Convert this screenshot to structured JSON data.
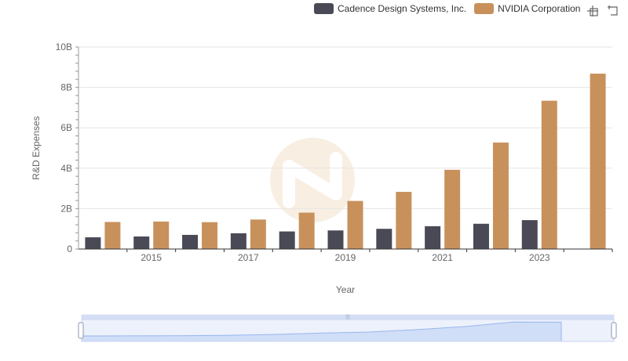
{
  "colors": {
    "cadence": "#4a4a56",
    "nvidia": "#c8915c",
    "grid": "#e6e6e6",
    "axis": "#666666",
    "zoom_fill": "#dbe6fb",
    "zoom_border": "#b8c7ea",
    "zoom_line": "#8fb0ee"
  },
  "legend": {
    "items": [
      {
        "label": "Cadence Design Systems, Inc.",
        "color": "#4a4a56"
      },
      {
        "label": "NVIDIA Corporation",
        "color": "#c8915c"
      }
    ]
  },
  "toolbox": {
    "icons": [
      "zoom-icon",
      "zoom-reset-icon"
    ]
  },
  "chart_data": {
    "type": "bar",
    "categories": [
      "2014",
      "2015",
      "2016",
      "2017",
      "2018",
      "2019",
      "2020",
      "2021",
      "2022",
      "2023",
      "2024"
    ],
    "x_tick_labels": [
      "2015",
      "2017",
      "2019",
      "2021",
      "2023"
    ],
    "xlabel": "Year",
    "ylabel": "R&D Expenses",
    "ylim": [
      0,
      10000000000
    ],
    "y_ticks": [
      0,
      2000000000,
      4000000000,
      6000000000,
      8000000000,
      10000000000
    ],
    "y_tick_labels": [
      "0",
      "2B",
      "4B",
      "6B",
      "8B",
      "10B"
    ],
    "grid": true,
    "legend_position": "top-right",
    "series": [
      {
        "name": "Cadence Design Systems, Inc.",
        "values": [
          580000000,
          620000000,
          700000000,
          780000000,
          870000000,
          920000000,
          1000000000,
          1130000000,
          1250000000,
          1430000000,
          null
        ]
      },
      {
        "name": "NVIDIA Corporation",
        "values": [
          1340000000,
          1360000000,
          1330000000,
          1460000000,
          1800000000,
          2380000000,
          2830000000,
          3920000000,
          5270000000,
          7340000000,
          8680000000
        ]
      }
    ]
  }
}
